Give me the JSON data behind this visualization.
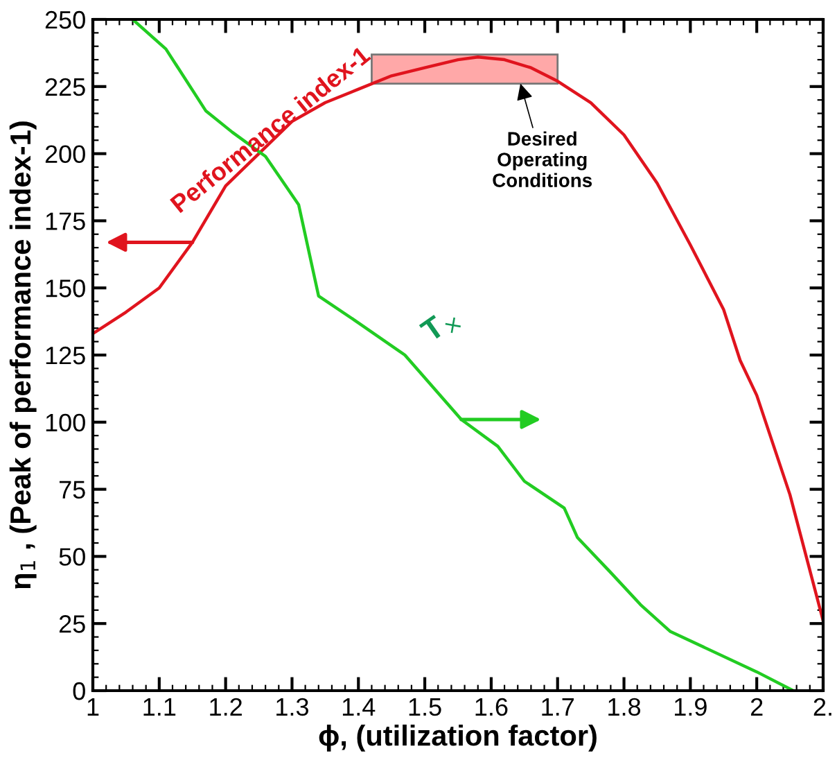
{
  "chart_data": {
    "type": "line",
    "xlabel": "ϕ, (utilization factor)",
    "ylabel": "η$_{1}$ , (Peak of performance index-1)",
    "xlim": [
      1,
      2.1
    ],
    "ylim": [
      0,
      250
    ],
    "xticks": [
      1,
      1.1,
      1.2,
      1.3,
      1.4,
      1.5,
      1.6,
      1.7,
      1.8,
      1.9,
      2,
      {
        "value": 2.1,
        "label": "2."
      }
    ],
    "yticks": [
      0,
      25,
      50,
      75,
      100,
      125,
      150,
      175,
      200,
      225,
      250
    ],
    "grid": false,
    "legend": false,
    "marker": "none",
    "line_style": "solid",
    "series": [
      {
        "name": "Performance index-1",
        "color": "#e0141e",
        "x": [
          1,
          1.05,
          1.1,
          1.15,
          1.2,
          1.25,
          1.3,
          1.35,
          1.4,
          1.45,
          1.5,
          1.55,
          1.58,
          1.62,
          1.66,
          1.7,
          1.75,
          1.8,
          1.85,
          1.9,
          1.95,
          1.975,
          2.0,
          2.05,
          2.1
        ],
        "values": [
          133,
          141,
          150,
          167,
          188,
          200,
          212,
          219,
          224,
          229,
          232,
          235,
          236,
          235,
          232,
          227,
          219,
          207,
          189,
          166,
          142,
          123,
          110,
          73,
          26
        ]
      },
      {
        "name": "T$_{×}$",
        "color": "#22cc22",
        "x": [
          1.06,
          1.11,
          1.17,
          1.21,
          1.26,
          1.31,
          1.34,
          1.4,
          1.47,
          1.555,
          1.61,
          1.65,
          1.71,
          1.73,
          1.78,
          1.825,
          1.87,
          2.0,
          2.055
        ],
        "values": [
          250,
          239,
          216,
          208,
          199,
          181,
          147,
          137,
          125,
          101,
          91,
          78,
          68,
          57,
          44,
          32,
          22,
          7,
          0
        ]
      }
    ],
    "bands": [
      {
        "axis": "x",
        "from": 1.42,
        "to": 1.7,
        "label": "Desired\nOperating\nConditions",
        "color": "#ffa8a8"
      }
    ]
  }
}
